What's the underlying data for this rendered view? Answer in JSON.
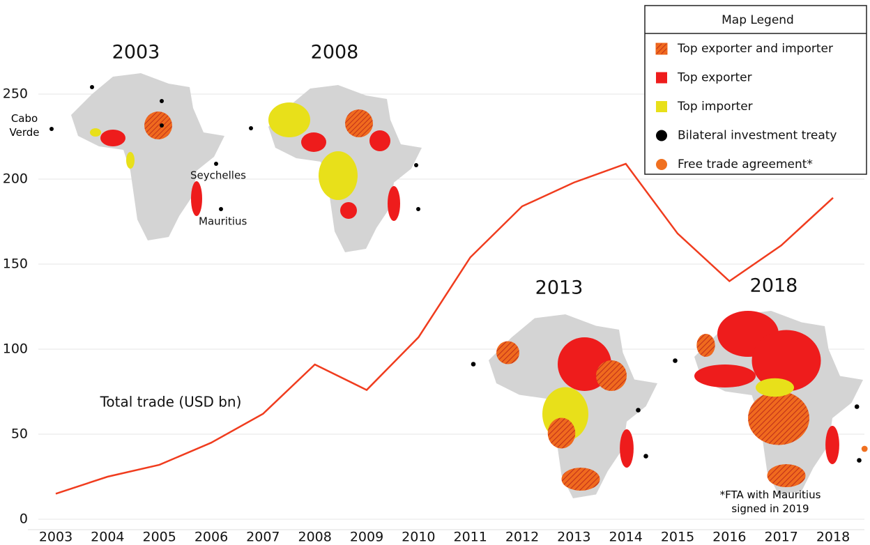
{
  "chart_data": {
    "type": "line",
    "categories": [
      "2003",
      "2004",
      "2005",
      "2006",
      "2007",
      "2008",
      "2009",
      "2010",
      "2011",
      "2012",
      "2013",
      "2014",
      "2015",
      "2016",
      "2017",
      "2018"
    ],
    "series": [
      {
        "name": "Total trade (USD bn)",
        "color": "#f03c1e",
        "values": [
          15,
          25,
          32,
          45,
          62,
          91,
          76,
          107,
          154,
          184,
          198,
          209,
          168,
          140,
          161,
          189
        ]
      }
    ],
    "ylim": [
      0,
      260
    ],
    "yticks": [
      0,
      50,
      100,
      150,
      200,
      250
    ],
    "grid": true,
    "maps": [
      {
        "title": "2003"
      },
      {
        "title": "2008"
      },
      {
        "title": "2013"
      },
      {
        "title": "2018"
      }
    ],
    "map_labels": [
      "Cabo Verde",
      "Seychelles",
      "Mauritius"
    ],
    "footnote": "*FTA with Mauritius signed in 2019",
    "map_legend": {
      "title": "Map Legend",
      "items": [
        {
          "label": "Top exporter and importer",
          "color": "#f06a1e"
        },
        {
          "label": "Top exporter",
          "color": "#ee1c1c"
        },
        {
          "label": "Top importer",
          "color": "#e8e01a"
        },
        {
          "label": "Bilateral investment treaty",
          "color": "#000000"
        },
        {
          "label": "Free trade agreement*",
          "color": "#f07020"
        }
      ]
    }
  }
}
